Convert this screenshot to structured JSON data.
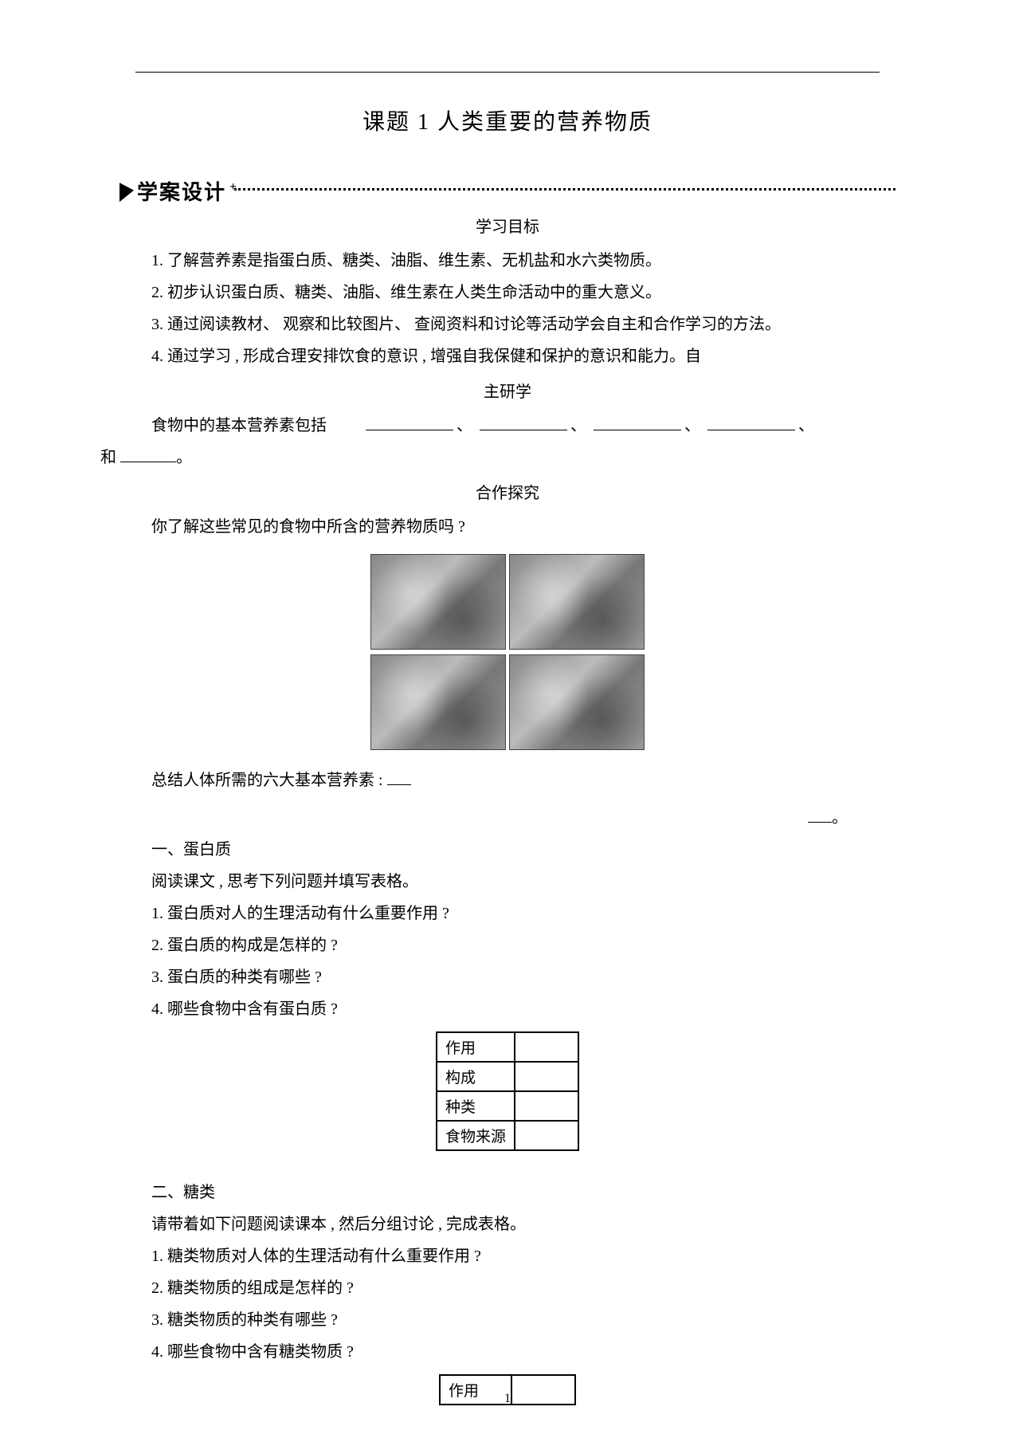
{
  "title": "课题 1  人类重要的营养物质",
  "banner_label": "学案设计",
  "headings": {
    "goals": "学习目标",
    "self_study_a": "主研学",
    "collab": "合作探究"
  },
  "goals": [
    "1. 了解营养素是指蛋白质、糖类、油脂、维生素、无机盐和水六类物质。",
    "2. 初步认识蛋白质、糖类、油脂、维生素在人类生命活动中的重大意义。",
    "3. 通过阅读教材、  观察和比较图片、  查阅资料和讨论等活动学会自主和合作学习的方法。",
    "4. 通过学习 , 形成合理安排饮食的意识 , 增强自我保健和保护的意识和能力。自"
  ],
  "fill_prompt_a": "食物中的基本营养素包括",
  "fill_prompt_b": "和",
  "sep": "、",
  "period": "。",
  "collab_q": "你了解这些常见的食物中所含的营养物质吗    ?",
  "summary_prompt": "总结人体所需的六大基本营养素    :",
  "right_dot": "。",
  "section1": {
    "h": "一、蛋白质",
    "intro": "阅读课文 , 思考下列问题并填写表格。",
    "q": [
      "1. 蛋白质对人的生理活动有什么重要作用    ?",
      "2. 蛋白质的构成是怎样的  ?",
      "3. 蛋白质的种类有哪些  ?",
      "4. 哪些食物中含有蛋白质  ?"
    ],
    "rows": [
      "作用",
      "构成",
      "种类",
      "食物来源"
    ]
  },
  "section2": {
    "h": "二、糖类",
    "intro": "请带着如下问题阅读课本  , 然后分组讨论  , 完成表格。",
    "q": [
      "1. 糖类物质对人体的生理活动有什么重要作用     ?",
      "2. 糖类物质的组成是怎样的  ?",
      "3. 糖类物质的种类有哪些  ?",
      "4. 哪些食物中含有糖类物质  ?"
    ],
    "rows": [
      "作用"
    ]
  },
  "page_number": "1"
}
